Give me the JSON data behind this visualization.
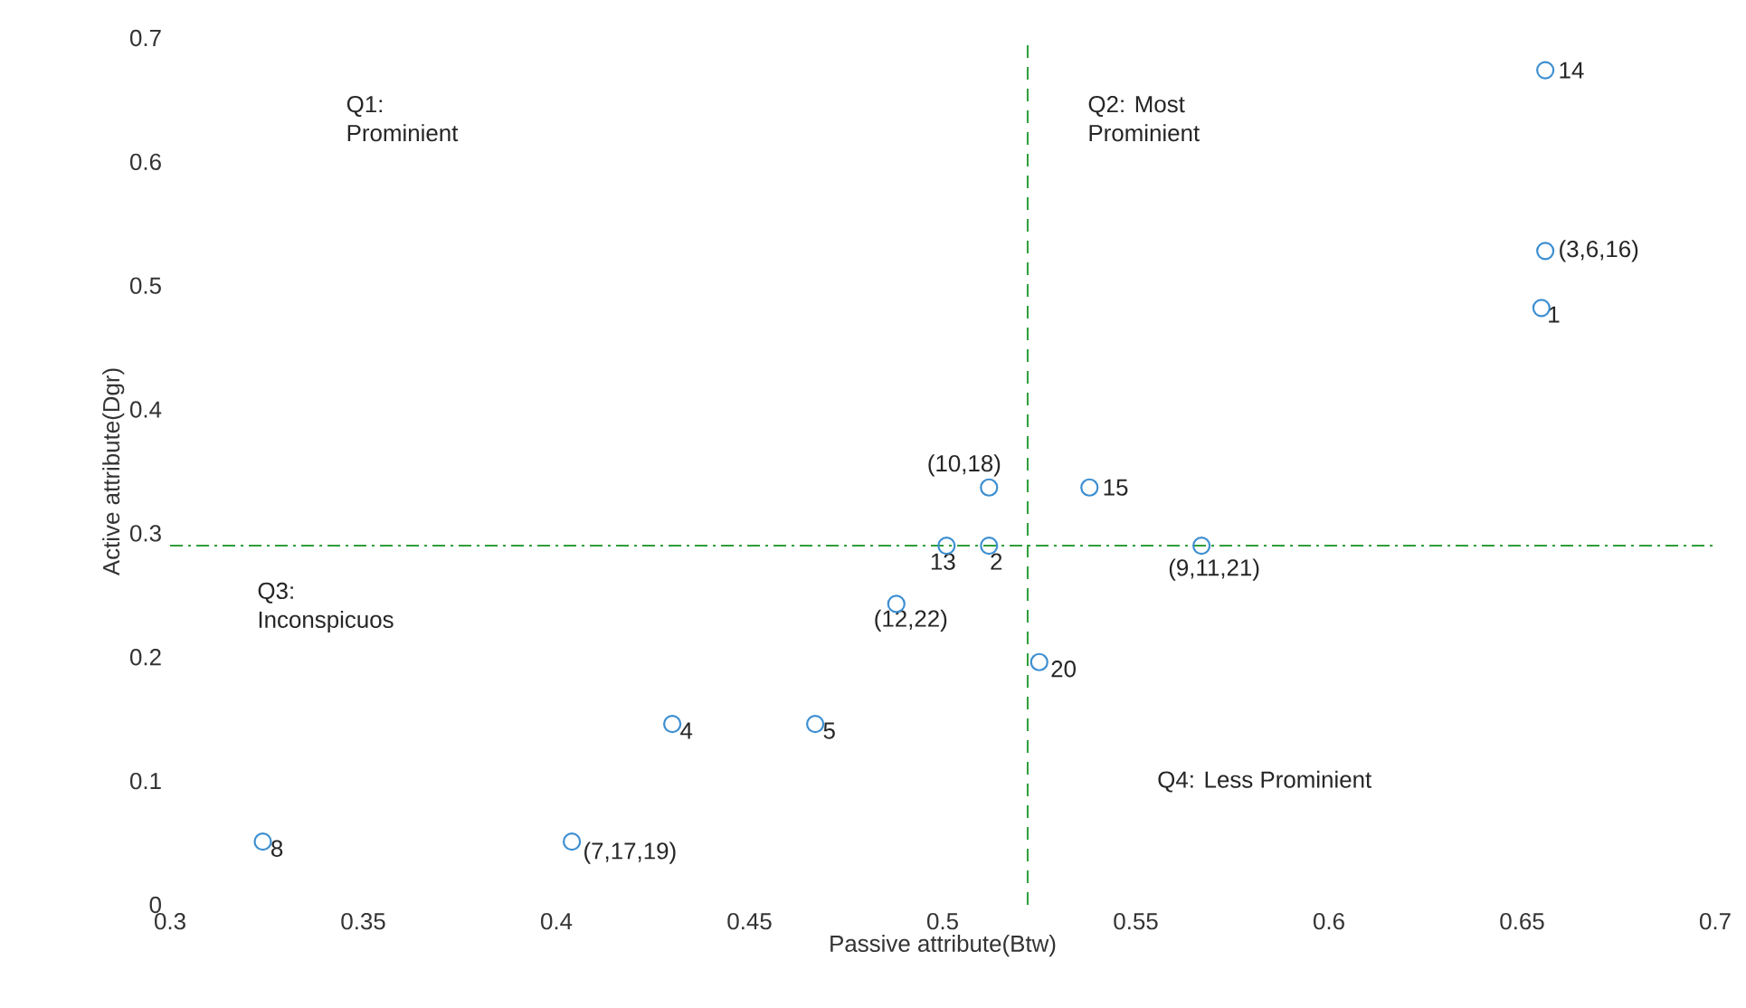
{
  "chart_data": {
    "type": "scatter",
    "xlabel": "Passive attribute(Btw)",
    "ylabel": "Active attribute(Dgr)",
    "x": [
      0.656,
      0.656,
      0.655,
      0.512,
      0.538,
      0.501,
      0.512,
      0.567,
      0.488,
      0.525,
      0.467,
      0.43,
      0.324,
      0.404
    ],
    "values": [
      0.674,
      0.528,
      0.482,
      0.337,
      0.337,
      0.29,
      0.29,
      0.29,
      0.243,
      0.196,
      0.146,
      0.146,
      0.051,
      0.051
    ],
    "color": "#3d8fd1",
    "marker": "circle",
    "xlim": [
      0.3,
      0.7
    ],
    "xticks": [
      0.3,
      0.35,
      0.4,
      0.45,
      0.5,
      0.55,
      0.6,
      0.65,
      0.7
    ],
    "ylim": [
      0,
      0.7
    ],
    "yticks": [
      0,
      0.1,
      0.2,
      0.3,
      0.4,
      0.5,
      0.6,
      0.7
    ],
    "ref_lines": [
      {
        "axis": "x",
        "value": 0.522,
        "color": "#2e9e3a",
        "line_style": "dashed"
      },
      {
        "axis": "y",
        "value": 0.29,
        "color": "#2e9e3a",
        "line_style": "dashdot"
      }
    ],
    "annotations": [
      {
        "text": "14",
        "x": 0.656,
        "y": 0.674
      },
      {
        "text": "(3,6,16)",
        "x": 0.656,
        "y": 0.528
      },
      {
        "text": "1",
        "x": 0.655,
        "y": 0.482
      },
      {
        "text": "(10,18)",
        "x": 0.512,
        "y": 0.337
      },
      {
        "text": "15",
        "x": 0.538,
        "y": 0.337
      },
      {
        "text": "13",
        "x": 0.501,
        "y": 0.29
      },
      {
        "text": "2",
        "x": 0.512,
        "y": 0.29
      },
      {
        "text": "(9,11,21)",
        "x": 0.567,
        "y": 0.29
      },
      {
        "text": "(12,22)",
        "x": 0.488,
        "y": 0.243
      },
      {
        "text": "20",
        "x": 0.525,
        "y": 0.196
      },
      {
        "text": "5",
        "x": 0.467,
        "y": 0.146
      },
      {
        "text": "4",
        "x": 0.43,
        "y": 0.146
      },
      {
        "text": "8",
        "x": 0.324,
        "y": 0.051
      },
      {
        "text": "(7,17,19)",
        "x": 0.404,
        "y": 0.051
      },
      "Q1:\nProminient",
      "Q2: Most\nProminient",
      "Q3:\nInconspicuos",
      "Q4: Less Prominient"
    ]
  }
}
